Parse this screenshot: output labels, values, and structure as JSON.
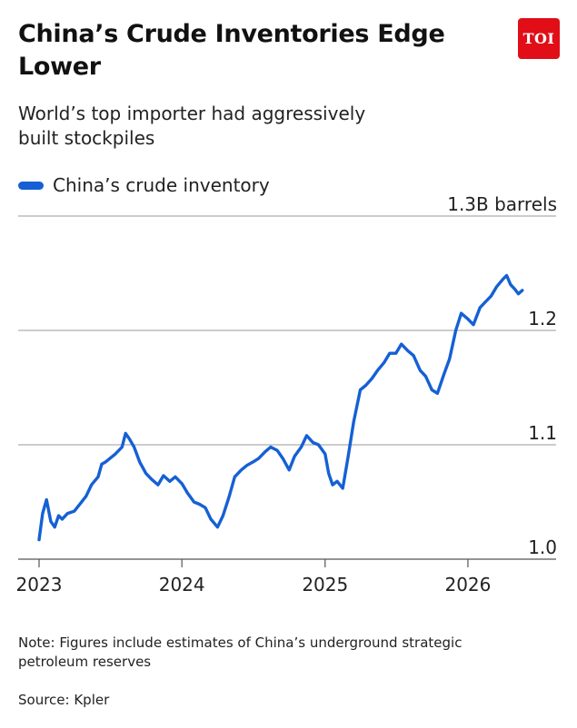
{
  "header": {
    "title": "China’s Crude Inventories Edge Lower",
    "subtitle": "World’s top importer had aggressively built stockpiles",
    "logo_text": "TOI"
  },
  "colors": {
    "line": "#1560d4",
    "logo_bg": "#e10e17",
    "grid": "#9a9a9a",
    "axis": "#555555"
  },
  "chart_data": {
    "type": "line",
    "title": "China’s Crude Inventories Edge Lower",
    "subtitle": "World’s top importer had aggressively built stockpiles",
    "ylabel": "",
    "y_unit_label": "1.3B barrels",
    "ylim": [
      1.0,
      1.3
    ],
    "y_ticks": [
      {
        "value": 1.0,
        "label": "1.0"
      },
      {
        "value": 1.1,
        "label": "1.1"
      },
      {
        "value": 1.2,
        "label": "1.2"
      },
      {
        "value": 1.3,
        "label": "1.3B barrels"
      }
    ],
    "xlim": [
      "2023-01-01",
      "2026-06-15"
    ],
    "x_ticks": [
      {
        "value": "2023-01-01",
        "label": "2023"
      },
      {
        "value": "2024-01-01",
        "label": "2024"
      },
      {
        "value": "2025-01-01",
        "label": "2025"
      },
      {
        "value": "2026-01-01",
        "label": "2026"
      }
    ],
    "grid": "horizontal",
    "legend": "top-left",
    "series": [
      {
        "name": "China’s crude inventory",
        "x": [
          "2023-01-01",
          "2023-01-10",
          "2023-01-20",
          "2023-01-31",
          "2023-02-10",
          "2023-02-20",
          "2023-03-01",
          "2023-03-15",
          "2023-04-01",
          "2023-04-15",
          "2023-05-01",
          "2023-05-15",
          "2023-06-01",
          "2023-06-10",
          "2023-06-20",
          "2023-07-01",
          "2023-07-15",
          "2023-08-01",
          "2023-08-10",
          "2023-08-20",
          "2023-09-01",
          "2023-09-15",
          "2023-10-01",
          "2023-10-15",
          "2023-11-01",
          "2023-11-15",
          "2023-12-01",
          "2023-12-15",
          "2024-01-01",
          "2024-01-15",
          "2024-02-01",
          "2024-02-15",
          "2024-03-01",
          "2024-03-15",
          "2024-04-01",
          "2024-04-15",
          "2024-05-01",
          "2024-05-15",
          "2024-06-01",
          "2024-06-15",
          "2024-07-01",
          "2024-07-15",
          "2024-08-01",
          "2024-08-15",
          "2024-09-01",
          "2024-09-15",
          "2024-10-01",
          "2024-10-15",
          "2024-11-01",
          "2024-11-15",
          "2024-12-01",
          "2024-12-15",
          "2025-01-01",
          "2025-01-10",
          "2025-01-20",
          "2025-02-01",
          "2025-02-15",
          "2025-03-01",
          "2025-03-15",
          "2025-04-01",
          "2025-04-15",
          "2025-05-01",
          "2025-05-15",
          "2025-06-01",
          "2025-06-15",
          "2025-07-01",
          "2025-07-15",
          "2025-08-01",
          "2025-08-15",
          "2025-09-01",
          "2025-09-15",
          "2025-10-01",
          "2025-10-15",
          "2025-11-01",
          "2025-11-15",
          "2025-12-01",
          "2025-12-15",
          "2026-01-01",
          "2026-01-15",
          "2026-02-01",
          "2026-02-15",
          "2026-03-01",
          "2026-03-15",
          "2026-04-01",
          "2026-04-10",
          "2026-04-20",
          "2026-05-01",
          "2026-05-10",
          "2026-05-20"
        ],
        "values": [
          1.017,
          1.04,
          1.052,
          1.033,
          1.028,
          1.038,
          1.035,
          1.04,
          1.042,
          1.048,
          1.055,
          1.065,
          1.072,
          1.083,
          1.085,
          1.088,
          1.092,
          1.098,
          1.11,
          1.105,
          1.098,
          1.085,
          1.075,
          1.07,
          1.065,
          1.073,
          1.068,
          1.072,
          1.066,
          1.058,
          1.05,
          1.048,
          1.045,
          1.035,
          1.028,
          1.038,
          1.055,
          1.072,
          1.078,
          1.082,
          1.085,
          1.088,
          1.094,
          1.098,
          1.095,
          1.088,
          1.078,
          1.09,
          1.098,
          1.108,
          1.102,
          1.1,
          1.092,
          1.075,
          1.065,
          1.068,
          1.062,
          1.09,
          1.12,
          1.148,
          1.152,
          1.158,
          1.165,
          1.172,
          1.18,
          1.18,
          1.188,
          1.182,
          1.178,
          1.165,
          1.16,
          1.148,
          1.145,
          1.162,
          1.175,
          1.2,
          1.215,
          1.21,
          1.205,
          1.22,
          1.225,
          1.23,
          1.238,
          1.245,
          1.248,
          1.24,
          1.236,
          1.232,
          1.235
        ]
      }
    ]
  },
  "footer": {
    "note": "Note: Figures include estimates of China’s underground strategic petroleum reserves",
    "source": "Source: Kpler"
  }
}
